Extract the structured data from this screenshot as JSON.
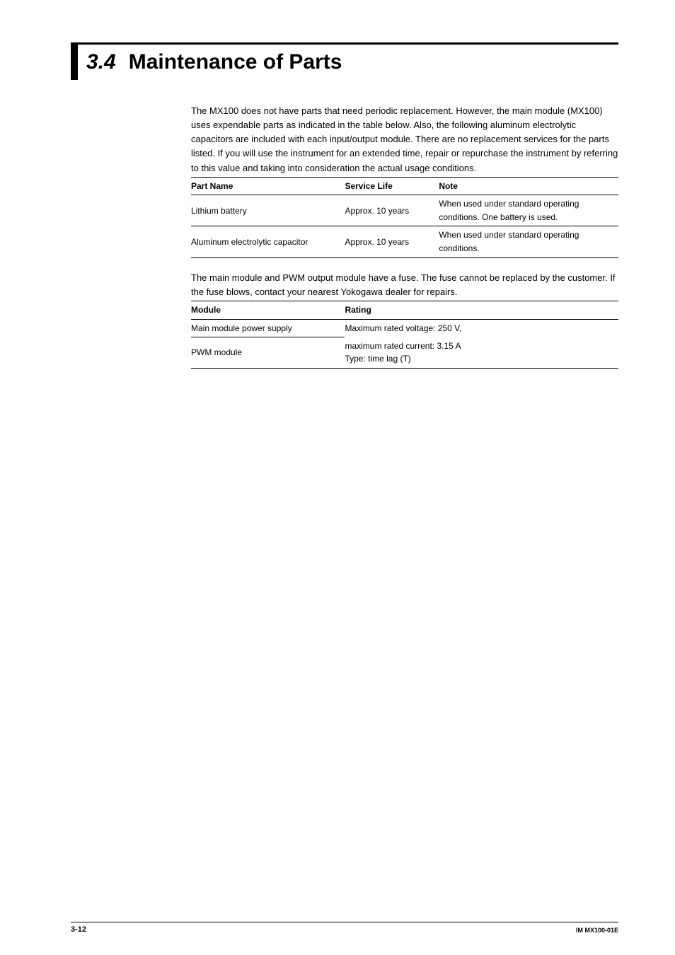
{
  "heading": {
    "number": "3.4",
    "title": "Maintenance of Parts"
  },
  "intro_para": "The MX100 does not have parts that need periodic replacement. However, the main module (MX100) uses expendable parts as indicated in the table below. Also, the following aluminum electrolytic capacitors are included with each input/output module. There are no replacement services for the parts listed. If you will use the instrument for an extended time, repair or repurchase the instrument by referring to this value and taking into consideration the actual usage conditions.",
  "parts_table": {
    "headers": {
      "c0": "Part Name",
      "c1": "Service Life",
      "c2": "Note"
    },
    "rows": [
      {
        "c0": "Lithium battery",
        "c1": "Approx. 10 years",
        "c2": "When used under standard operating conditions. One battery is used."
      },
      {
        "c0": "Aluminum electrolytic capacitor",
        "c1": "Approx. 10 years",
        "c2": "When used under standard operating conditions."
      }
    ],
    "col_widths": {
      "c0": "36%",
      "c1": "22%",
      "c2": "42%"
    }
  },
  "fuse_para": "The main module and PWM output module have a fuse. The fuse cannot be replaced by the customer. If the fuse blows, contact your nearest Yokogawa dealer for repairs.",
  "fuse_table": {
    "headers": {
      "c0": "Module",
      "c1": "Rating"
    },
    "rows": [
      {
        "module": "Main module power supply",
        "rating": "Maximum rated voltage: 250 V,"
      },
      {
        "module": "PWM module",
        "rating_top": "maximum rated current: 3.15 A",
        "rating_bottom": "Type: time lag (T)"
      }
    ],
    "col_widths": {
      "c0": "36%",
      "c1": "64%"
    }
  },
  "footer": {
    "page": "3-12",
    "doc": "IM MX100-01E"
  }
}
